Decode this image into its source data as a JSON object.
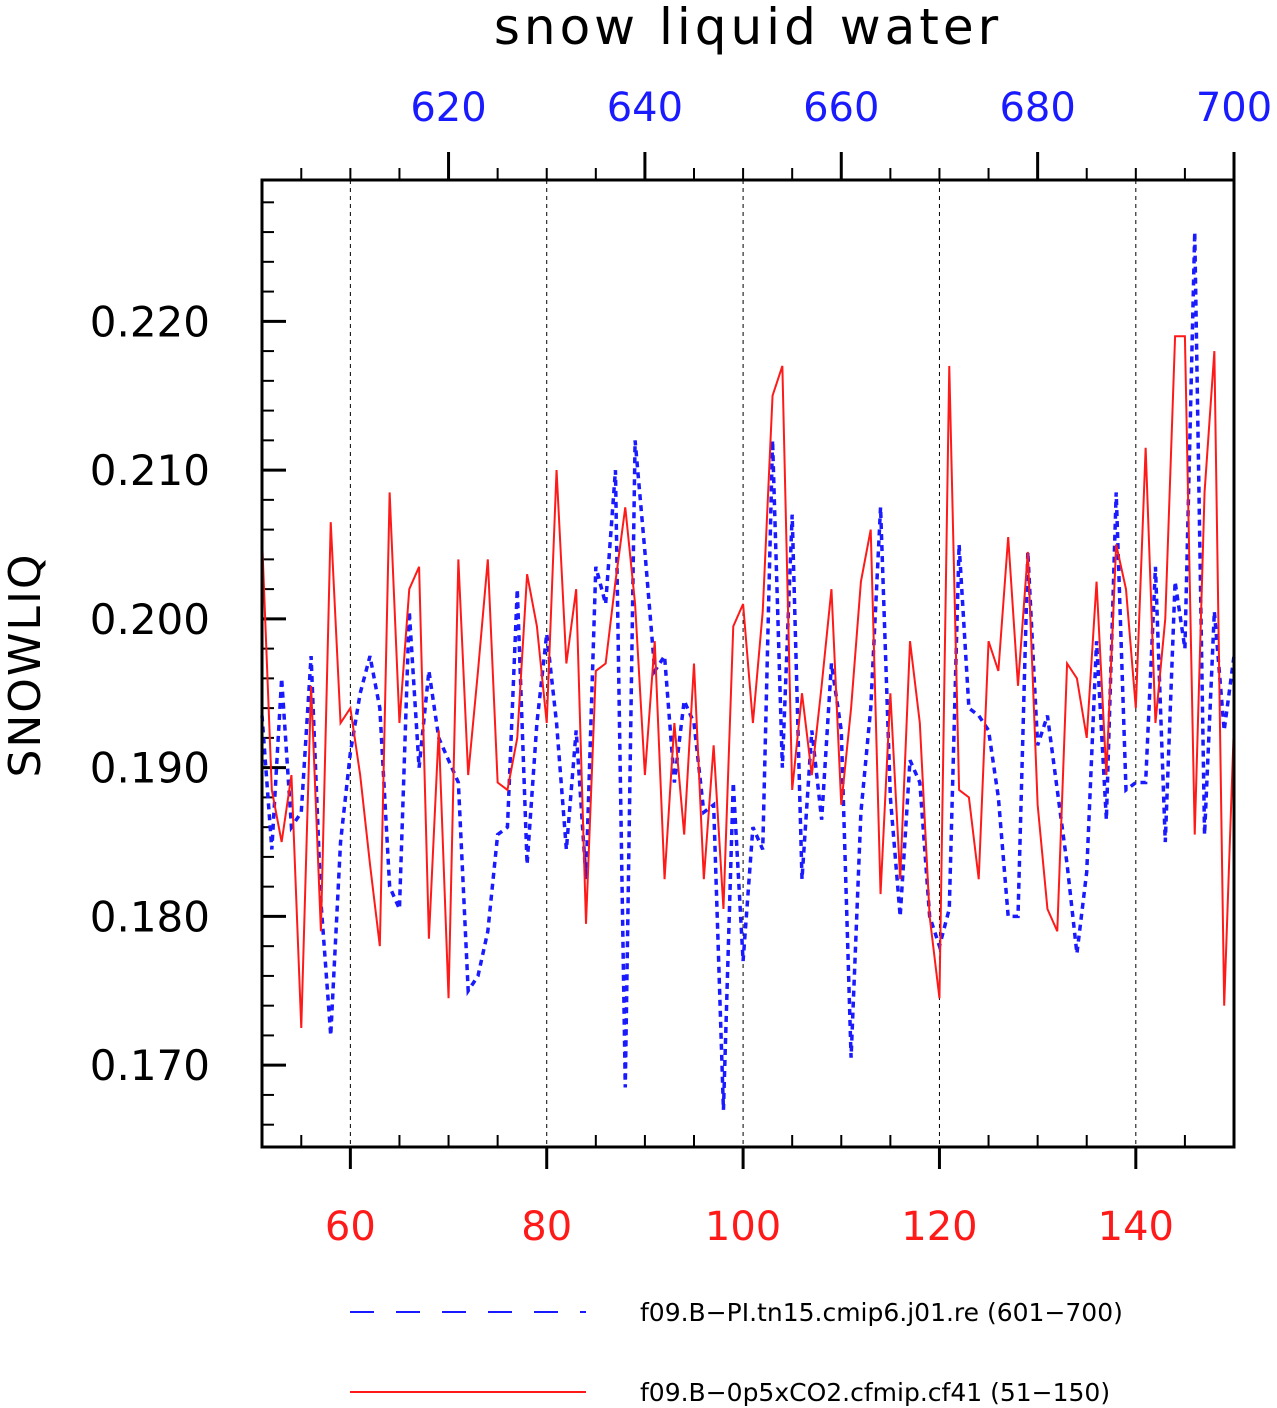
{
  "chart_data": {
    "type": "line",
    "title": "snow liquid water",
    "ylabel": "SNOWLIQ",
    "xlabel": "",
    "ylim": [
      0.1645,
      0.2295
    ],
    "grid": "vertical dashed at major x ticks",
    "legend_position": "bottom",
    "colors": {
      "series_blue": "#1a1aff",
      "series_red": "#ff1a1a",
      "axis": "#000000"
    },
    "y_ticks": [
      "0.170",
      "0.180",
      "0.190",
      "0.200",
      "0.210",
      "0.220"
    ],
    "x_bottom": {
      "range": [
        51,
        150
      ],
      "ticks": [
        "60",
        "80",
        "100",
        "120",
        "140"
      ],
      "color": "#ff1a1a"
    },
    "x_top": {
      "range": [
        601,
        700
      ],
      "ticks": [
        "620",
        "640",
        "660",
        "680",
        "700"
      ],
      "color": "#1a1aff"
    },
    "series": [
      {
        "name": "f09.B−PI.tn15.cmip6.j01.re (601−700)",
        "axis": "top",
        "style": "dashed",
        "x_start": 601,
        "values": [
          0.1935,
          0.1845,
          0.196,
          0.186,
          0.187,
          0.1975,
          0.181,
          0.172,
          0.185,
          0.191,
          0.195,
          0.1975,
          0.194,
          0.182,
          0.1805,
          0.2005,
          0.19,
          0.1965,
          0.192,
          0.1905,
          0.189,
          0.175,
          0.176,
          0.179,
          0.1855,
          0.186,
          0.202,
          0.1835,
          0.193,
          0.199,
          0.193,
          0.1845,
          0.1925,
          0.1825,
          0.2035,
          0.201,
          0.21,
          0.1685,
          0.212,
          0.2045,
          0.1965,
          0.1975,
          0.189,
          0.1945,
          0.193,
          0.187,
          0.1875,
          0.167,
          0.189,
          0.177,
          0.186,
          0.1845,
          0.212,
          0.19,
          0.207,
          0.1825,
          0.1925,
          0.1865,
          0.197,
          0.1925,
          0.1705,
          0.187,
          0.194,
          0.2075,
          0.188,
          0.18,
          0.1905,
          0.189,
          0.18,
          0.178,
          0.1805,
          0.205,
          0.194,
          0.1935,
          0.1925,
          0.188,
          0.18,
          0.18,
          0.2045,
          0.1915,
          0.1935,
          0.1885,
          0.1835,
          0.1775,
          0.183,
          0.1985,
          0.1865,
          0.2085,
          0.1885,
          0.189,
          0.189,
          0.2035,
          0.185,
          0.2025,
          0.198,
          0.226,
          0.1855,
          0.2005,
          0.1925,
          0.1975
        ]
      },
      {
        "name": "f09.B−0p5xCO2.cfmip.cf41 (51−150)",
        "axis": "bottom",
        "style": "solid",
        "x_start": 51,
        "values": [
          0.2055,
          0.1885,
          0.185,
          0.1895,
          0.1725,
          0.1955,
          0.179,
          0.2065,
          0.193,
          0.194,
          0.1895,
          0.1835,
          0.178,
          0.2085,
          0.193,
          0.202,
          0.2035,
          0.1785,
          0.1925,
          0.1745,
          0.204,
          0.1895,
          0.1965,
          0.204,
          0.189,
          0.1885,
          0.192,
          0.203,
          0.1995,
          0.193,
          0.21,
          0.197,
          0.202,
          0.1795,
          0.1965,
          0.197,
          0.2025,
          0.2075,
          0.201,
          0.1895,
          0.1985,
          0.1825,
          0.193,
          0.1855,
          0.197,
          0.1825,
          0.1915,
          0.1805,
          0.1995,
          0.201,
          0.193,
          0.2005,
          0.215,
          0.217,
          0.1885,
          0.195,
          0.1895,
          0.1955,
          0.202,
          0.1875,
          0.194,
          0.2025,
          0.206,
          0.1815,
          0.195,
          0.1825,
          0.1985,
          0.193,
          0.18,
          0.1745,
          0.217,
          0.1885,
          0.188,
          0.1825,
          0.1985,
          0.1965,
          0.2055,
          0.1955,
          0.2045,
          0.1875,
          0.1805,
          0.179,
          0.197,
          0.196,
          0.192,
          0.2025,
          0.1895,
          0.205,
          0.202,
          0.194,
          0.2115,
          0.193,
          0.2,
          0.219,
          0.219,
          0.1855,
          0.2085,
          0.218,
          0.174,
          0.193
        ]
      }
    ]
  }
}
